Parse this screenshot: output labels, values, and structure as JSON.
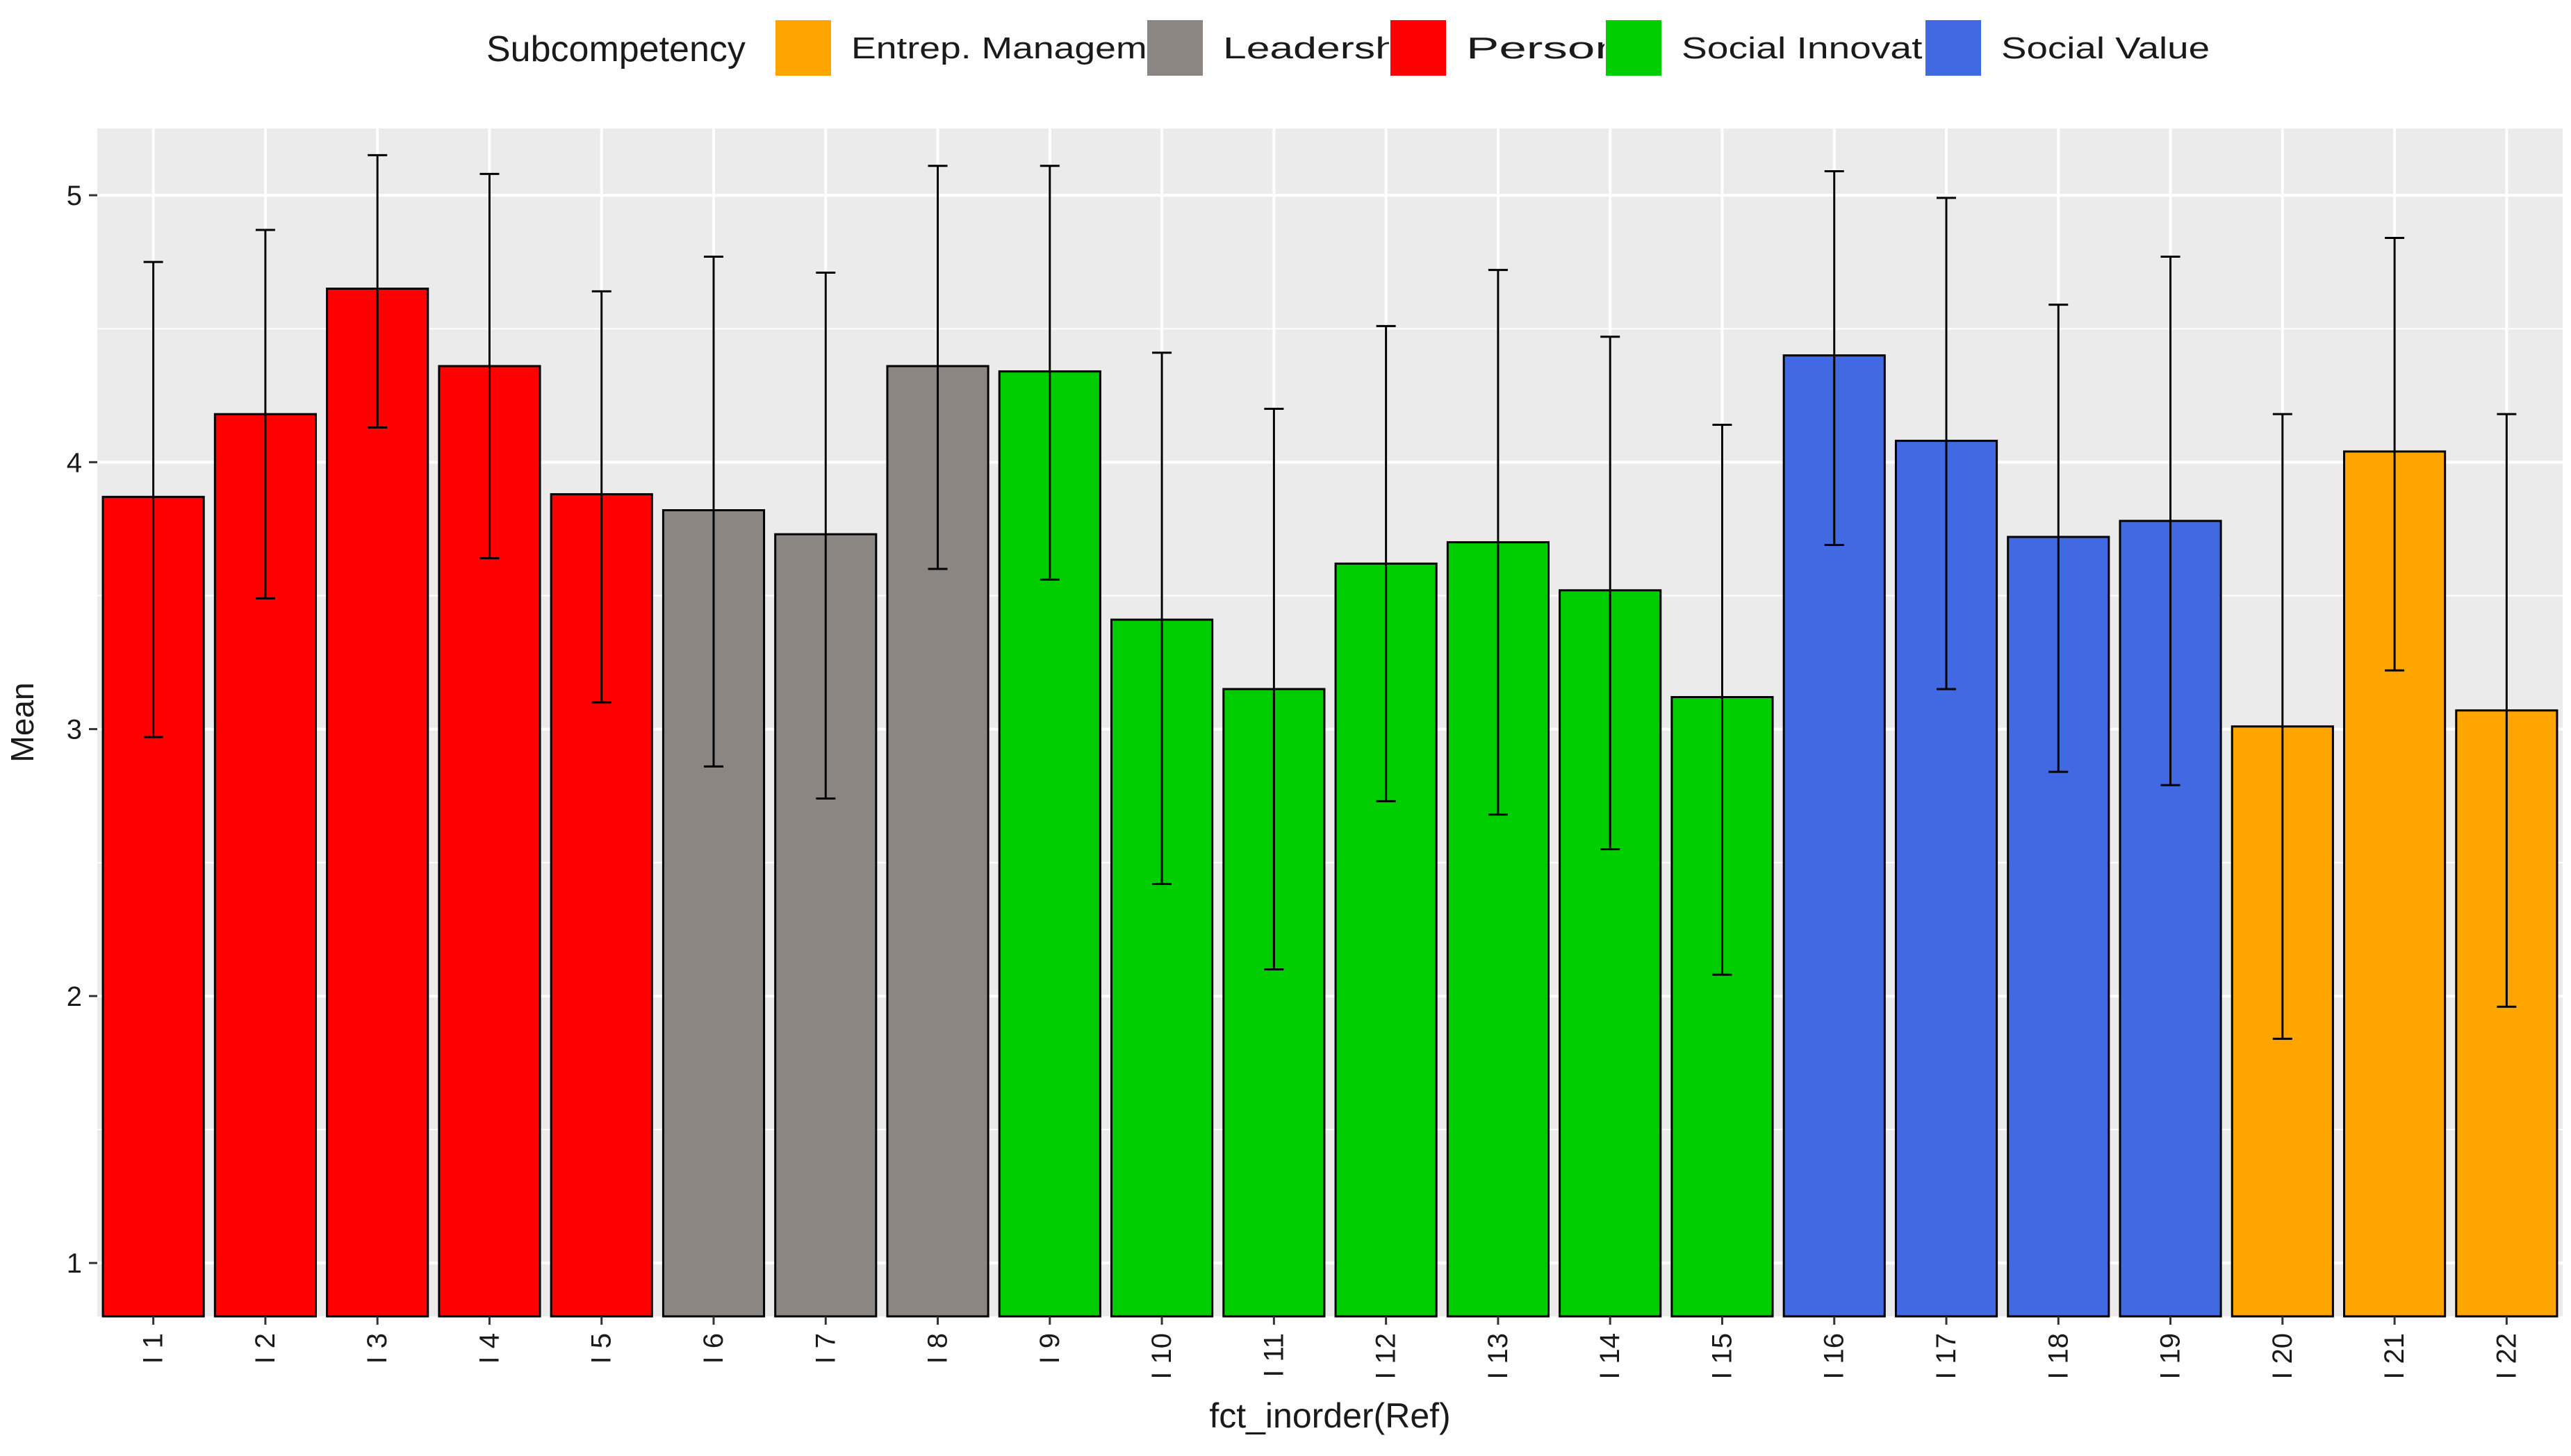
{
  "chart_data": {
    "type": "bar",
    "title": "",
    "xlabel": "fct_inorder(Ref)",
    "ylabel": "Mean",
    "ylim": [
      0.8,
      5.25
    ],
    "yticks": [
      1,
      2,
      3,
      4,
      5
    ],
    "grid": true,
    "legend": {
      "title": "Subcompetency",
      "position": "top",
      "entries": [
        {
          "name": "Entrep. Management",
          "color": "#FFA500"
        },
        {
          "name": "Leadership",
          "color": "#8B8682"
        },
        {
          "name": "Personal",
          "color": "#FF0000"
        },
        {
          "name": "Social Innovation",
          "color": "#00CD00"
        },
        {
          "name": "Social Value",
          "color": "#4169E1"
        }
      ]
    },
    "categories": [
      "I 1",
      "I 2",
      "I 3",
      "I 4",
      "I 5",
      "I 6",
      "I 7",
      "I 8",
      "I 9",
      "I 10",
      "I 11",
      "I 12",
      "I 13",
      "I 14",
      "I 15",
      "I 16",
      "I 17",
      "I 18",
      "I 19",
      "I 20",
      "I 21",
      "I 22"
    ],
    "groups": [
      "Personal",
      "Personal",
      "Personal",
      "Personal",
      "Personal",
      "Leadership",
      "Leadership",
      "Leadership",
      "Social Innovation",
      "Social Innovation",
      "Social Innovation",
      "Social Innovation",
      "Social Innovation",
      "Social Innovation",
      "Social Innovation",
      "Social Value",
      "Social Value",
      "Social Value",
      "Social Value",
      "Entrep. Management",
      "Entrep. Management",
      "Entrep. Management"
    ],
    "values": [
      3.87,
      4.18,
      4.65,
      4.36,
      3.88,
      3.82,
      3.73,
      4.36,
      4.34,
      3.41,
      3.15,
      3.62,
      3.7,
      3.52,
      3.12,
      4.4,
      4.08,
      3.72,
      3.78,
      3.01,
      4.04,
      3.07
    ],
    "error_low": [
      2.97,
      3.49,
      4.13,
      3.64,
      3.1,
      2.86,
      2.74,
      3.6,
      3.56,
      2.42,
      2.1,
      2.73,
      2.68,
      2.55,
      2.08,
      3.69,
      3.15,
      2.84,
      2.79,
      1.84,
      3.22,
      1.96
    ],
    "error_high": [
      4.75,
      4.87,
      5.15,
      5.08,
      4.64,
      4.77,
      4.71,
      5.11,
      5.11,
      4.41,
      4.2,
      4.51,
      4.72,
      4.47,
      4.14,
      5.09,
      4.99,
      4.59,
      4.77,
      4.18,
      4.84,
      4.18
    ]
  }
}
